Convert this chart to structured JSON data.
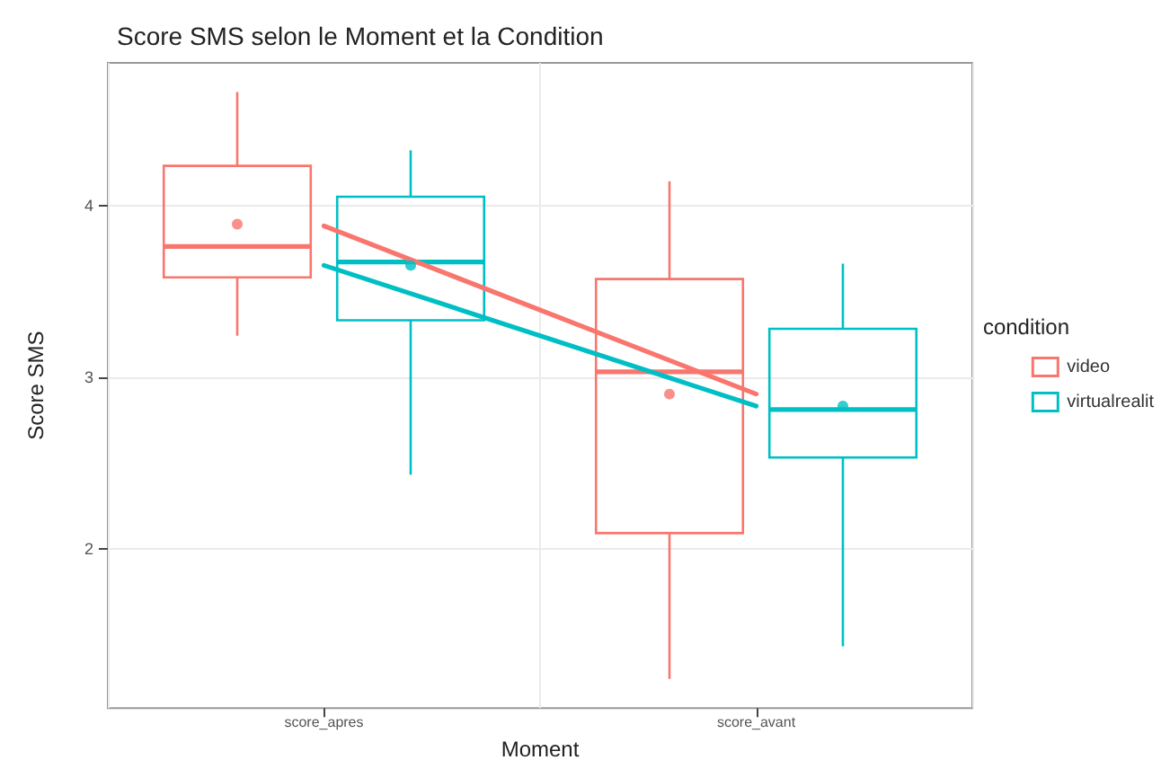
{
  "chart_data": {
    "type": "box",
    "title": "Score SMS selon le Moment et la Condition",
    "xlabel": "Moment",
    "ylabel": "Score SMS",
    "legend_title": "condition",
    "categories": [
      "score_apres",
      "score_avant"
    ],
    "series": [
      {
        "name": "video",
        "color": "#f8766d",
        "boxes": [
          {
            "low": 3.24,
            "q1": 3.58,
            "median": 3.76,
            "q3": 4.23,
            "high": 4.66,
            "mean": 3.89
          },
          {
            "low": 1.24,
            "q1": 2.09,
            "median": 3.03,
            "q3": 3.57,
            "high": 4.14,
            "mean": 2.9
          }
        ]
      },
      {
        "name": "virtualrealit",
        "color": "#00bfc4",
        "boxes": [
          {
            "low": 2.43,
            "q1": 3.33,
            "median": 3.67,
            "q3": 4.05,
            "high": 4.32,
            "mean": 3.65
          },
          {
            "low": 1.43,
            "q1": 2.53,
            "median": 2.81,
            "q3": 3.28,
            "high": 3.66,
            "mean": 2.83
          }
        ]
      },
      {
        "type": "line",
        "color": "#f8766d",
        "x": [
          "score_apres",
          "score_avant"
        ],
        "values": [
          3.88,
          2.9
        ]
      },
      {
        "type": "line",
        "color": "#00bfc4",
        "x": [
          "score_apres",
          "score_avant"
        ],
        "values": [
          3.65,
          2.83
        ]
      }
    ],
    "ylim": [
      1.07,
      4.83
    ],
    "yticks": [
      2,
      3,
      4
    ],
    "grid": true,
    "legend": "right"
  }
}
